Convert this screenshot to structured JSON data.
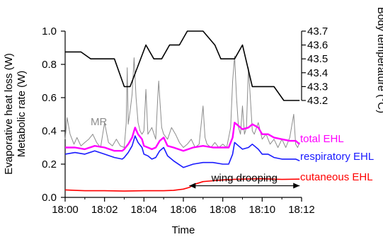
{
  "chart_data": {
    "type": "line",
    "xlabel": "Time",
    "ylabel_left_1": "Evaporative heat loss (W)",
    "ylabel_left_2": "Metabolic rate (W)",
    "ylabel_right": "Body temperature (°C)",
    "x_unit": "minutes after 18:00",
    "x_ticks": [
      {
        "value": 0,
        "label": "18:00"
      },
      {
        "value": 2,
        "label": "18:02"
      },
      {
        "value": 4,
        "label": "18:04"
      },
      {
        "value": 6,
        "label": "18:06"
      },
      {
        "value": 8,
        "label": "18:08"
      },
      {
        "value": 10,
        "label": "18:10"
      },
      {
        "value": 12,
        "label": "18:12"
      }
    ],
    "xlim": [
      0,
      12
    ],
    "ylim_left": [
      0,
      1.0
    ],
    "y_ticks_left": [
      "0.0",
      "0.2",
      "0.4",
      "0.6",
      "0.8",
      "1.0"
    ],
    "ylim_right": [
      43.2,
      43.7
    ],
    "y_ticks_right": [
      "43.2",
      "43.3",
      "43.4",
      "43.5",
      "43.6",
      "43.7"
    ],
    "series": [
      {
        "name": "MR",
        "axis": "left",
        "color": "#8c8c8c",
        "x": [
          0,
          0.1,
          0.25,
          0.45,
          0.6,
          0.8,
          1.0,
          1.2,
          1.4,
          1.6,
          1.8,
          2.0,
          2.2,
          2.4,
          2.6,
          2.8,
          3.0,
          3.1,
          3.15,
          3.2,
          3.3,
          3.4,
          3.5,
          3.6,
          3.7,
          3.8,
          3.9,
          4.0,
          4.1,
          4.2,
          4.4,
          4.6,
          4.7,
          4.75,
          4.8,
          4.9,
          5.0,
          5.2,
          5.4,
          5.6,
          5.8,
          6.0,
          6.2,
          6.4,
          6.6,
          6.8,
          7.0,
          7.1,
          7.2,
          7.4,
          7.6,
          7.8,
          8.0,
          8.2,
          8.4,
          8.5,
          8.6,
          8.7,
          8.8,
          8.9,
          9.0,
          9.1,
          9.2,
          9.3,
          9.4,
          9.5,
          9.6,
          9.8,
          10.0,
          10.2,
          10.4,
          10.6,
          10.8,
          11.0,
          11.2,
          11.4,
          11.6,
          11.7,
          11.8,
          11.9
        ],
        "values": [
          0.35,
          0.48,
          0.38,
          0.32,
          0.36,
          0.31,
          0.33,
          0.35,
          0.38,
          0.33,
          0.3,
          0.45,
          0.33,
          0.31,
          0.35,
          0.31,
          0.3,
          0.45,
          0.78,
          0.44,
          0.52,
          0.62,
          0.84,
          0.6,
          0.45,
          0.4,
          0.38,
          0.4,
          0.65,
          0.38,
          0.42,
          0.35,
          0.6,
          0.7,
          0.6,
          0.42,
          0.38,
          0.35,
          0.42,
          0.38,
          0.33,
          0.3,
          0.32,
          0.35,
          0.3,
          0.32,
          0.55,
          0.36,
          0.32,
          0.3,
          0.33,
          0.3,
          0.32,
          0.3,
          0.42,
          0.7,
          0.85,
          0.6,
          0.42,
          0.38,
          0.55,
          0.38,
          0.42,
          0.78,
          0.6,
          0.4,
          0.38,
          0.45,
          0.35,
          0.38,
          0.32,
          0.35,
          0.3,
          0.35,
          0.3,
          0.36,
          0.5,
          0.32,
          0.3,
          0.33
        ]
      },
      {
        "name": "total EHL",
        "axis": "left",
        "color": "#ff00ff",
        "x": [
          0,
          0.5,
          1.0,
          1.5,
          2.0,
          2.5,
          2.9,
          3.0,
          3.2,
          3.4,
          3.55,
          3.7,
          3.9,
          4.0,
          4.2,
          4.4,
          4.6,
          4.8,
          5.0,
          5.2,
          5.5,
          6.0,
          6.5,
          7.0,
          7.5,
          8.0,
          8.3,
          8.5,
          8.6,
          8.8,
          9.0,
          9.3,
          9.5,
          9.8,
          10.0,
          10.3,
          10.6,
          11.0,
          11.4,
          11.7,
          11.9
        ],
        "values": [
          0.3,
          0.3,
          0.29,
          0.31,
          0.3,
          0.28,
          0.28,
          0.29,
          0.32,
          0.36,
          0.42,
          0.38,
          0.35,
          0.31,
          0.3,
          0.29,
          0.3,
          0.34,
          0.36,
          0.31,
          0.3,
          0.28,
          0.3,
          0.31,
          0.3,
          0.3,
          0.3,
          0.36,
          0.45,
          0.43,
          0.41,
          0.42,
          0.44,
          0.42,
          0.38,
          0.38,
          0.36,
          0.35,
          0.34,
          0.34,
          0.32
        ]
      },
      {
        "name": "respiratory EHL",
        "axis": "left",
        "color": "#1a1aff",
        "x": [
          0,
          0.5,
          1.0,
          1.5,
          2.0,
          2.5,
          2.9,
          3.0,
          3.2,
          3.4,
          3.55,
          3.7,
          3.9,
          4.0,
          4.2,
          4.4,
          4.6,
          4.8,
          5.0,
          5.2,
          5.5,
          6.0,
          6.5,
          7.0,
          7.5,
          8.0,
          8.3,
          8.5,
          8.6,
          8.8,
          9.0,
          9.3,
          9.5,
          9.8,
          10.0,
          10.3,
          10.6,
          11.0,
          11.4,
          11.7,
          11.9
        ],
        "values": [
          0.26,
          0.27,
          0.26,
          0.28,
          0.26,
          0.24,
          0.23,
          0.24,
          0.27,
          0.31,
          0.37,
          0.33,
          0.3,
          0.26,
          0.25,
          0.23,
          0.24,
          0.28,
          0.3,
          0.25,
          0.22,
          0.18,
          0.2,
          0.21,
          0.21,
          0.2,
          0.2,
          0.26,
          0.33,
          0.31,
          0.29,
          0.3,
          0.32,
          0.29,
          0.26,
          0.26,
          0.24,
          0.23,
          0.23,
          0.23,
          0.22
        ]
      },
      {
        "name": "cutaneous EHL",
        "axis": "left",
        "color": "#ff0000",
        "x": [
          0,
          0.5,
          1.0,
          2.0,
          3.0,
          4.0,
          5.0,
          5.5,
          6.0,
          6.3,
          6.6,
          7.0,
          7.5,
          8.0,
          8.5,
          9.0,
          10.0,
          11.0,
          11.9
        ],
        "values": [
          0.045,
          0.042,
          0.04,
          0.04,
          0.038,
          0.04,
          0.04,
          0.042,
          0.05,
          0.06,
          0.08,
          0.095,
          0.1,
          0.105,
          0.108,
          0.11,
          0.112,
          0.108,
          0.11
        ]
      },
      {
        "name": "Body temperature",
        "axis": "right",
        "color": "#000000",
        "x": [
          0,
          0.8,
          1.3,
          2.5,
          3.0,
          3.3,
          4.1,
          4.5,
          4.9,
          5.3,
          5.8,
          6.2,
          7.0,
          7.6,
          7.9,
          8.6,
          9.0,
          9.5,
          10.6,
          11.1,
          11.9
        ],
        "values": [
          43.55,
          43.55,
          43.5,
          43.5,
          43.3,
          43.3,
          43.6,
          43.5,
          43.5,
          43.6,
          43.6,
          43.7,
          43.7,
          43.6,
          43.5,
          43.5,
          43.6,
          43.3,
          43.3,
          43.2,
          43.2
        ]
      }
    ],
    "annotations": {
      "mr_label": "MR",
      "total_label": "total EHL",
      "respiratory_label": "respiratory EHL",
      "cutaneous_label": "cutaneous EHL",
      "wing_drooping": {
        "text": "wing drooping",
        "x_start": 6.3,
        "x_end": 11.9,
        "y": 0.07
      }
    }
  }
}
